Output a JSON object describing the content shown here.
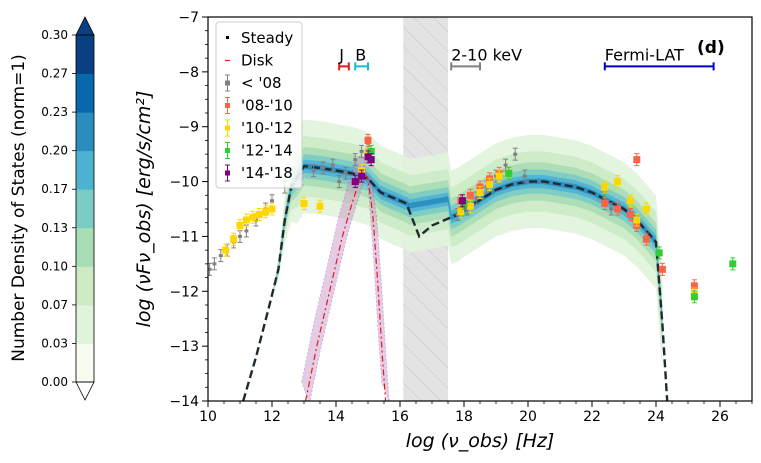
{
  "chart_data": {
    "type": "scatter",
    "panel_label": "(d)",
    "xlabel": "log (ν_obs)  [Hz]",
    "ylabel": "log (νFν_obs)  [erg/s/cm²]",
    "xlim": [
      10,
      27
    ],
    "ylim": [
      -14,
      -7
    ],
    "xticks": [
      "10",
      "12",
      "14",
      "16",
      "18",
      "20",
      "22",
      "24",
      "26"
    ],
    "yticks": [
      "−7",
      "−8",
      "−9",
      "−10",
      "−11",
      "−12",
      "−13",
      "−14"
    ],
    "colorbar": {
      "label": "Number Density of States (norm=1)",
      "ticks": [
        "0.00",
        "0.03",
        "0.07",
        "0.10",
        "0.13",
        "0.17",
        "0.20",
        "0.23",
        "0.27",
        "0.30"
      ],
      "colors": [
        "#f7fcf0",
        "#e0f3db",
        "#ccebc5",
        "#a8ddb5",
        "#7bccc4",
        "#4eb3d3",
        "#2b8cbe",
        "#0868ac",
        "#084081"
      ],
      "over_color": "#084081",
      "under_color": "#ffffff"
    },
    "legend": [
      {
        "label": "Steady",
        "color": "#000000",
        "style": "dashed-line"
      },
      {
        "label": "Disk",
        "color": "#e41a1c",
        "style": "dashdot-line"
      },
      {
        "label": "< '08",
        "color": "#808080",
        "style": "errorbar"
      },
      {
        "label": "'08-'10",
        "color": "#ff6347",
        "style": "errorbar"
      },
      {
        "label": "'10-'12",
        "color": "#ffd700",
        "style": "errorbar"
      },
      {
        "label": "'12-'14",
        "color": "#32cd32",
        "style": "errorbar"
      },
      {
        "label": "'14-'18",
        "color": "#800080",
        "style": "errorbar"
      }
    ],
    "annotations": [
      {
        "label": "J",
        "x_range": [
          14.1,
          14.4
        ],
        "y": -7.9,
        "color": "#e41a1c"
      },
      {
        "label": "B",
        "x_range": [
          14.6,
          15.0
        ],
        "y": -7.9,
        "color": "#17becf"
      },
      {
        "label": "2-10 keV",
        "x_range": [
          17.6,
          18.5
        ],
        "y": -7.9,
        "color": "#808080"
      },
      {
        "label": "Fermi-LAT",
        "x_range": [
          22.4,
          25.8
        ],
        "y": -7.9,
        "color": "#0000cc"
      }
    ],
    "shaded_band": {
      "x_range": [
        16.1,
        17.5
      ],
      "color": "#cccccc"
    },
    "series": [
      {
        "name": "Steady",
        "x": [
          11.1,
          11.5,
          11.9,
          12.2,
          12.4,
          12.6,
          13.0,
          13.5,
          14.0,
          14.5,
          15.0,
          15.4,
          15.8,
          16.2,
          16.6,
          17.0,
          17.4,
          17.8,
          18.2,
          18.6,
          19.0,
          19.5,
          20.0,
          20.5,
          21.0,
          21.5,
          22.0,
          22.5,
          23.0,
          23.4,
          23.7,
          24.0,
          24.2,
          24.35
        ],
        "y": [
          -14.0,
          -13.2,
          -12.3,
          -11.6,
          -10.7,
          -10.1,
          -9.72,
          -9.75,
          -9.8,
          -9.85,
          -9.95,
          -10.2,
          -10.3,
          -10.4,
          -11.0,
          -10.8,
          -10.7,
          -10.6,
          -10.45,
          -10.3,
          -10.15,
          -10.05,
          -10.0,
          -10.0,
          -10.05,
          -10.1,
          -10.2,
          -10.35,
          -10.5,
          -10.7,
          -10.9,
          -11.1,
          -12.6,
          -14.0
        ]
      },
      {
        "name": "Disk",
        "x": [
          13.05,
          13.4,
          13.8,
          14.2,
          14.5,
          14.75,
          14.9,
          15.0,
          15.15,
          15.3,
          15.45,
          15.55
        ],
        "y": [
          -14.0,
          -13.0,
          -12.0,
          -11.0,
          -10.4,
          -9.95,
          -9.85,
          -9.95,
          -10.6,
          -11.8,
          -13.2,
          -14.0
        ]
      },
      {
        "name": "< '08",
        "x": [
          10.05,
          10.2,
          10.4,
          10.6,
          10.8,
          11.0,
          11.2,
          11.5,
          11.8,
          12.0,
          12.4,
          12.9,
          13.3,
          13.6,
          13.9,
          14.1,
          14.3,
          14.6,
          14.8,
          15.0,
          17.8,
          18.1,
          18.4,
          18.7,
          19.0,
          19.3,
          19.6,
          19.9,
          22.4,
          22.6
        ],
        "y": [
          -11.6,
          -11.5,
          -11.35,
          -11.25,
          -11.1,
          -11.0,
          -10.9,
          -10.7,
          -10.5,
          -10.35,
          -10.1,
          -9.95,
          -9.8,
          -9.75,
          -9.7,
          -10.0,
          -9.85,
          -9.6,
          -9.45,
          -9.3,
          -10.6,
          -10.5,
          -10.3,
          -10.1,
          -9.9,
          -9.7,
          -9.5,
          -9.9,
          -10.3,
          -10.5
        ]
      },
      {
        "name": "'08-'10",
        "x": [
          15.0,
          17.9,
          18.2,
          18.5,
          18.8,
          19.1,
          22.4,
          22.8,
          23.2,
          23.4,
          23.4,
          23.7,
          24.2,
          25.2
        ],
        "y": [
          -9.25,
          -10.35,
          -10.25,
          -10.1,
          -9.95,
          -9.85,
          -10.4,
          -10.5,
          -10.6,
          -9.6,
          -10.8,
          -11.05,
          -11.6,
          -11.9
        ]
      },
      {
        "name": "'10-'12",
        "x": [
          10.55,
          10.8,
          11.0,
          11.2,
          11.4,
          11.6,
          11.8,
          12.0,
          13.0,
          13.5,
          14.8,
          15.0,
          17.9,
          18.2,
          18.5,
          18.8,
          19.1,
          19.4,
          22.4,
          22.8,
          23.2,
          23.4,
          23.7,
          25.2
        ],
        "y": [
          -11.25,
          -11.05,
          -10.8,
          -10.7,
          -10.65,
          -10.6,
          -10.55,
          -10.5,
          -10.4,
          -10.45,
          -9.8,
          -9.5,
          -10.55,
          -10.45,
          -10.2,
          -10.05,
          -9.9,
          -9.85,
          -10.1,
          -10.0,
          -10.35,
          -10.7,
          -10.5,
          -12.05
        ]
      },
      {
        "name": "'12-'14",
        "x": [
          15.1,
          18.0,
          19.4,
          24.1,
          25.2,
          26.4
        ],
        "y": [
          -9.45,
          -10.4,
          -9.85,
          -11.3,
          -12.1,
          -11.5
        ]
      },
      {
        "name": "'14-'18",
        "x": [
          14.6,
          14.8,
          15.0,
          15.1,
          17.95
        ],
        "y": [
          -10.0,
          -9.9,
          -9.55,
          -9.6,
          -10.35
        ]
      }
    ]
  }
}
